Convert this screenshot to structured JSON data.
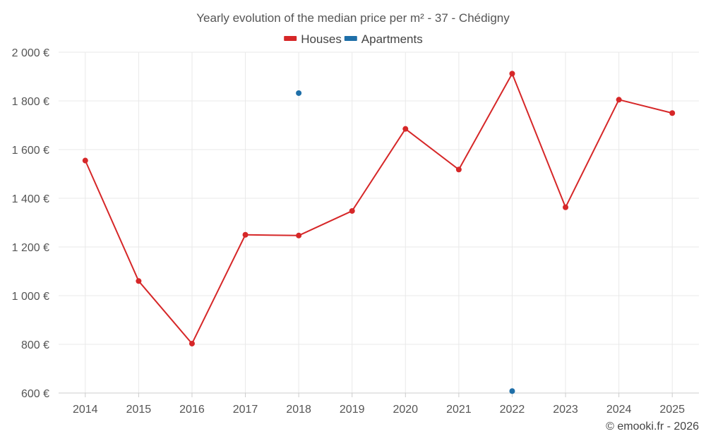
{
  "chart_data": {
    "type": "line",
    "title": "Yearly evolution of the median price per m² - 37 - Chédigny",
    "categories": [
      "2014",
      "2015",
      "2016",
      "2017",
      "2018",
      "2019",
      "2020",
      "2021",
      "2022",
      "2023",
      "2024",
      "2025"
    ],
    "series": [
      {
        "name": "Houses",
        "color": "#d62728",
        "values": [
          1555,
          1060,
          803,
          1250,
          1247,
          1348,
          1685,
          1518,
          1912,
          1363,
          1805,
          1750
        ]
      },
      {
        "name": "Apartments",
        "color": "#1f6fa8",
        "values": [
          null,
          null,
          null,
          null,
          1832,
          null,
          null,
          null,
          608,
          null,
          null,
          null
        ]
      }
    ],
    "ylim": [
      600,
      2000
    ],
    "yticks": [
      600,
      800,
      1000,
      1200,
      1400,
      1600,
      1800,
      2000
    ],
    "ytick_labels": [
      "600 €",
      "800 €",
      "1 000 €",
      "1 200 €",
      "1 400 €",
      "1 600 €",
      "1 800 €",
      "2 000 €"
    ],
    "xlabel": "",
    "ylabel": "",
    "grid": true,
    "legend_position": "top-center"
  },
  "credit": "© emooki.fr - 2026"
}
